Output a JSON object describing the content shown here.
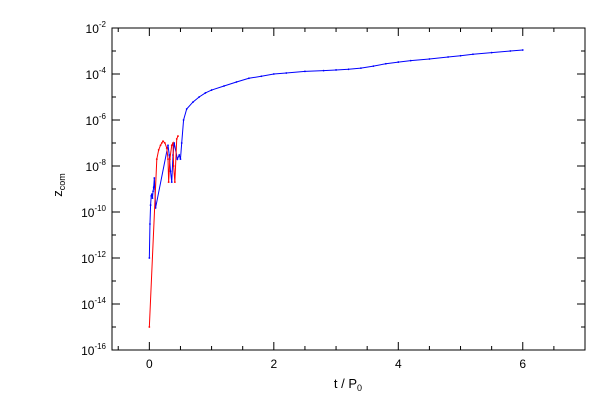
{
  "colors": {
    "background": "#ffffff",
    "axis": "#000000",
    "series_blue": "#0000ff",
    "series_red": "#ff0000"
  },
  "chart_data": {
    "type": "scatter",
    "title": "",
    "xlabel_main": "t / P",
    "xlabel_sub": "0",
    "ylabel_main": "z",
    "ylabel_sub": "com",
    "xlim": [
      -0.6,
      7.0
    ],
    "ylim": [
      1e-16,
      0.01
    ],
    "yscale": "log",
    "grid": false,
    "legend": "none",
    "x_ticks": [
      {
        "value": 0,
        "label": "0"
      },
      {
        "value": 2,
        "label": "2"
      },
      {
        "value": 4,
        "label": "4"
      },
      {
        "value": 6,
        "label": "6"
      }
    ],
    "y_ticks": [
      {
        "value": 1e-16,
        "base": "10",
        "exp": "-16"
      },
      {
        "value": 1e-14,
        "base": "10",
        "exp": "-14"
      },
      {
        "value": 1e-12,
        "base": "10",
        "exp": "-12"
      },
      {
        "value": 1e-10,
        "base": "10",
        "exp": "-10"
      },
      {
        "value": 1e-08,
        "base": "10",
        "exp": "-8"
      },
      {
        "value": 1e-06,
        "base": "10",
        "exp": "-6"
      },
      {
        "value": 0.0001,
        "base": "10",
        "exp": "-4"
      },
      {
        "value": 0.01,
        "base": "10",
        "exp": "-2"
      }
    ],
    "series": [
      {
        "color": "#0000ff",
        "x": [
          0.0,
          0.01,
          0.02,
          0.03,
          0.04,
          0.05,
          0.06,
          0.07,
          0.08,
          0.09,
          0.1,
          0.3,
          0.32,
          0.34,
          0.36,
          0.38,
          0.4,
          0.45,
          0.48,
          0.5,
          0.52,
          0.55,
          0.6,
          0.7,
          0.8,
          0.9,
          1.0,
          1.2,
          1.4,
          1.6,
          1.8,
          2.0,
          2.2,
          2.5,
          2.8,
          3.0,
          3.2,
          3.4,
          3.6,
          3.8,
          4.0,
          4.2,
          4.5,
          4.8,
          5.0,
          5.2,
          5.5,
          5.8,
          6.0
        ],
        "y": [
          1e-12,
          3e-11,
          2e-10,
          5e-10,
          6e-10,
          4e-10,
          8e-10,
          1.2e-09,
          3e-09,
          1e-09,
          1.5e-10,
          8e-08,
          3e-08,
          6e-09,
          2e-09,
          3e-08,
          1e-07,
          2e-08,
          3e-08,
          2e-08,
          1e-07,
          1e-06,
          3e-06,
          6e-06,
          1e-05,
          1.5e-05,
          2e-05,
          3e-05,
          4.5e-05,
          6.5e-05,
          8e-05,
          0.0001,
          0.00011,
          0.00013,
          0.00014,
          0.00015,
          0.00016,
          0.00018,
          0.00022,
          0.00028,
          0.00033,
          0.00038,
          0.00045,
          0.00055,
          0.00062,
          0.00072,
          0.00085,
          0.001,
          0.0011
        ]
      },
      {
        "color": "#ff0000",
        "x": [
          0.0,
          0.12,
          0.15,
          0.18,
          0.2,
          0.22,
          0.25,
          0.28,
          0.3,
          0.31,
          0.33,
          0.36,
          0.38,
          0.39,
          0.41,
          0.44,
          0.46
        ],
        "y": [
          1e-15,
          2e-08,
          5e-08,
          8e-08,
          1e-07,
          1.2e-07,
          1e-07,
          6e-08,
          2e-08,
          2e-09,
          2e-08,
          8e-08,
          1e-07,
          1e-08,
          2e-09,
          1.5e-07,
          2e-07
        ]
      }
    ]
  }
}
